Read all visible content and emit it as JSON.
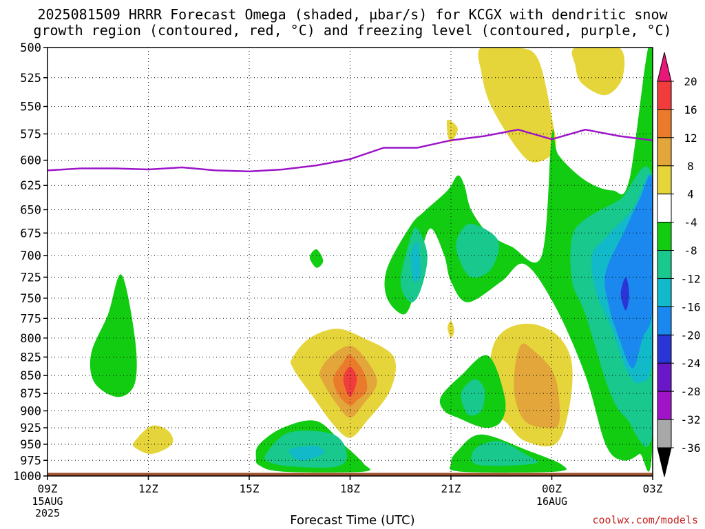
{
  "title_line1": "2025081509 HRRR Forecast Omega (shaded, µbar/s) for KCGX with dendritic snow",
  "title_line2": "growth region (contoured, red, °C) and freezing level (contoured, purple, °C)",
  "credit": "coolwx.com/models",
  "chart_data": {
    "type": "heatmap",
    "title": "2025081509 HRRR Forecast Omega (shaded, µbar/s) for KCGX with dendritic snow growth region (contoured, red, °C) and freezing level (contoured, purple, °C)",
    "xlabel": "Forecast Time (UTC)",
    "ylabel": "",
    "x_ticks": [
      {
        "hour": 0,
        "label": "09Z",
        "sub": [
          "15AUG",
          "2025"
        ]
      },
      {
        "hour": 3,
        "label": "12Z",
        "sub": []
      },
      {
        "hour": 6,
        "label": "15Z",
        "sub": []
      },
      {
        "hour": 9,
        "label": "18Z",
        "sub": []
      },
      {
        "hour": 12,
        "label": "21Z",
        "sub": []
      },
      {
        "hour": 15,
        "label": "00Z",
        "sub": [
          "16AUG"
        ]
      },
      {
        "hour": 18,
        "label": "03Z",
        "sub": []
      }
    ],
    "xlim": [
      0,
      18
    ],
    "y_ticks": [
      500,
      525,
      550,
      575,
      600,
      625,
      650,
      675,
      700,
      725,
      750,
      775,
      800,
      825,
      850,
      875,
      900,
      925,
      950,
      975,
      1000
    ],
    "ylim": [
      500,
      1000
    ],
    "y_scale": "log-pressure",
    "grid": true,
    "colorbar": {
      "labels": [
        "20",
        "16",
        "12",
        "8",
        "4",
        "-4",
        "-8",
        "-12",
        "-16",
        "-20",
        "-24",
        "-28",
        "-32",
        "-36"
      ],
      "bins": [
        {
          "range": ">20",
          "color": "#e8177a"
        },
        {
          "range": "16–20",
          "color": "#f03c3c"
        },
        {
          "range": "12–16",
          "color": "#ea7a2c"
        },
        {
          "range": "8–12",
          "color": "#e2a63a"
        },
        {
          "range": "4–8",
          "color": "#e6d53a"
        },
        {
          "range": "-4–4",
          "color": "#ffffff"
        },
        {
          "range": "-8–-4",
          "color": "#11cc11"
        },
        {
          "range": "-12–-8",
          "color": "#18c88c"
        },
        {
          "range": "-16–-12",
          "color": "#12b9c8"
        },
        {
          "range": "-20–-16",
          "color": "#1a88ee"
        },
        {
          "range": "-24–-20",
          "color": "#2b35d6"
        },
        {
          "range": "-28–-24",
          "color": "#6a17c8"
        },
        {
          "range": "-32–-28",
          "color": "#9f14c6"
        },
        {
          "range": "-36–-32",
          "color": "#a8a8a8"
        },
        {
          "range": "<-36",
          "color": "#000000"
        }
      ]
    },
    "freezing_level_hPa": [
      {
        "hour": 0,
        "p": 610
      },
      {
        "hour": 1,
        "p": 608
      },
      {
        "hour": 2,
        "p": 608
      },
      {
        "hour": 3,
        "p": 609
      },
      {
        "hour": 4,
        "p": 607
      },
      {
        "hour": 5,
        "p": 610
      },
      {
        "hour": 6,
        "p": 611
      },
      {
        "hour": 7,
        "p": 609
      },
      {
        "hour": 8,
        "p": 605
      },
      {
        "hour": 9,
        "p": 599
      },
      {
        "hour": 10,
        "p": 588
      },
      {
        "hour": 11,
        "p": 588
      },
      {
        "hour": 12,
        "p": 581
      },
      {
        "hour": 13,
        "p": 577
      },
      {
        "hour": 14,
        "p": 571
      },
      {
        "hour": 15,
        "p": 580
      },
      {
        "hour": 16,
        "p": 571
      },
      {
        "hour": 17,
        "p": 577
      },
      {
        "hour": 18,
        "p": 581
      }
    ],
    "freezing_level_color": "#9b14c8",
    "omega_regions": [
      {
        "level": "4–8",
        "color": "#e6d53a",
        "pts": [
          [
            12.9,
            500
          ],
          [
            14,
            500
          ],
          [
            14.6,
            510
          ],
          [
            15,
            560
          ],
          [
            15.1,
            590
          ],
          [
            14.5,
            602
          ],
          [
            14,
            590
          ],
          [
            13.2,
            550
          ],
          [
            12.9,
            520
          ]
        ]
      },
      {
        "level": "4–8",
        "color": "#e6d53a",
        "pts": [
          [
            15.7,
            500
          ],
          [
            17,
            500
          ],
          [
            17.1,
            525
          ],
          [
            16.6,
            540
          ],
          [
            15.9,
            530
          ],
          [
            15.7,
            515
          ]
        ]
      },
      {
        "level": "4–8",
        "color": "#e6d53a",
        "pts": [
          [
            11.9,
            562
          ],
          [
            12.2,
            570
          ],
          [
            12,
            583
          ],
          [
            11.9,
            575
          ]
        ]
      },
      {
        "level": "4–8",
        "color": "#e6d53a",
        "pts": [
          [
            9,
            835
          ],
          [
            9.5,
            835
          ],
          [
            9.8,
            875
          ],
          [
            9.1,
            905
          ]
        ]
      },
      {
        "level": "4–8",
        "color": "#e6d53a",
        "pts": [
          [
            7.3,
            825
          ],
          [
            7.8,
            800
          ],
          [
            8.6,
            788
          ],
          [
            9.4,
            800
          ],
          [
            10.3,
            825
          ],
          [
            10.2,
            870
          ],
          [
            9.5,
            915
          ],
          [
            9,
            940
          ],
          [
            8.5,
            920
          ],
          [
            7.9,
            880
          ],
          [
            7.3,
            840
          ]
        ]
      },
      {
        "level": "8–12",
        "color": "#e2a63a",
        "pts": [
          [
            8.1,
            845
          ],
          [
            8.4,
            825
          ],
          [
            9,
            810
          ],
          [
            9.5,
            830
          ],
          [
            9.8,
            860
          ],
          [
            9.4,
            890
          ],
          [
            9,
            910
          ],
          [
            8.6,
            890
          ],
          [
            8.2,
            860
          ]
        ]
      },
      {
        "level": "12–16",
        "color": "#ea7a2c",
        "pts": [
          [
            8.5,
            855
          ],
          [
            8.8,
            832
          ],
          [
            9,
            822
          ],
          [
            9.4,
            845
          ],
          [
            9.5,
            870
          ],
          [
            9.2,
            885
          ],
          [
            9,
            892
          ],
          [
            8.7,
            880
          ]
        ]
      },
      {
        "level": "16–20",
        "color": "#f03c3c",
        "pts": [
          [
            8.8,
            855
          ],
          [
            9,
            838
          ],
          [
            9.2,
            855
          ],
          [
            9,
            880
          ]
        ]
      },
      {
        "level": "4–8",
        "color": "#e6d53a",
        "pts": [
          [
            13.2,
            820
          ],
          [
            13.6,
            790
          ],
          [
            14.4,
            782
          ],
          [
            15.2,
            798
          ],
          [
            15.6,
            835
          ],
          [
            15.5,
            900
          ],
          [
            15.1,
            950
          ],
          [
            14.2,
            945
          ],
          [
            13.7,
            920
          ],
          [
            13.2,
            890
          ]
        ]
      },
      {
        "level": "8–12",
        "color": "#e2a63a",
        "pts": [
          [
            13.9,
            840
          ],
          [
            14.1,
            808
          ],
          [
            14.5,
            818
          ],
          [
            15,
            842
          ],
          [
            15.2,
            875
          ],
          [
            15.2,
            920
          ],
          [
            14.8,
            925
          ],
          [
            14.2,
            915
          ],
          [
            13.9,
            880
          ]
        ]
      },
      {
        "level": "4–8",
        "color": "#e6d53a",
        "pts": [
          [
            2.6,
            945
          ],
          [
            3.1,
            922
          ],
          [
            3.6,
            930
          ],
          [
            3.7,
            950
          ],
          [
            3.1,
            965
          ],
          [
            2.6,
            955
          ]
        ]
      },
      {
        "level": "4–8",
        "color": "#e6d53a",
        "pts": [
          [
            11.9,
            787
          ],
          [
            12,
            778
          ],
          [
            12.1,
            790
          ],
          [
            12,
            800
          ]
        ]
      },
      {
        "level": "-8–-4",
        "color": "#11cc11",
        "pts": [
          [
            1.3,
            820
          ],
          [
            1.8,
            770
          ],
          [
            2.2,
            722
          ],
          [
            2.6,
            800
          ],
          [
            2.6,
            860
          ],
          [
            2.1,
            880
          ],
          [
            1.4,
            860
          ]
        ]
      },
      {
        "level": "-8–-4",
        "color": "#11cc11",
        "pts": [
          [
            7.8,
            702
          ],
          [
            8,
            693
          ],
          [
            8.2,
            706
          ],
          [
            8,
            714
          ]
        ]
      },
      {
        "level": "-8–-4",
        "color": "#11cc11",
        "pts": [
          [
            6.3,
            950
          ],
          [
            7,
            925
          ],
          [
            8,
            915
          ],
          [
            8.8,
            950
          ],
          [
            9.4,
            980
          ],
          [
            9.4,
            993
          ],
          [
            7,
            993
          ],
          [
            6.3,
            983
          ],
          [
            6.2,
            970
          ]
        ]
      },
      {
        "level": "-12–-8",
        "color": "#18c88c",
        "pts": [
          [
            6.5,
            965
          ],
          [
            7.2,
            932
          ],
          [
            8.5,
            935
          ],
          [
            8.9,
            965
          ],
          [
            8.6,
            985
          ],
          [
            7.3,
            985
          ],
          [
            6.6,
            978
          ]
        ]
      },
      {
        "level": "-16–-12",
        "color": "#12b9c8",
        "pts": [
          [
            7.2,
            958
          ],
          [
            8,
            953
          ],
          [
            8.2,
            965
          ],
          [
            7.5,
            975
          ]
        ]
      },
      {
        "level": "-8–-4",
        "color": "#11cc11",
        "pts": [
          [
            11.7,
            880
          ],
          [
            12.3,
            850
          ],
          [
            13.1,
            823
          ],
          [
            13.6,
            880
          ],
          [
            13.5,
            915
          ],
          [
            13,
            925
          ],
          [
            12.2,
            910
          ],
          [
            11.8,
            900
          ]
        ]
      },
      {
        "level": "-12–-8",
        "color": "#18c88c",
        "pts": [
          [
            12.3,
            875
          ],
          [
            12.7,
            855
          ],
          [
            13,
            870
          ],
          [
            12.9,
            900
          ],
          [
            12.5,
            905
          ]
        ]
      },
      {
        "level": "-8–-4",
        "color": "#11cc11",
        "pts": [
          [
            12.2,
            960
          ],
          [
            12.9,
            935
          ],
          [
            14.3,
            960
          ],
          [
            15.3,
            982
          ],
          [
            15.1,
            993
          ],
          [
            12.3,
            993
          ],
          [
            12,
            980
          ]
        ]
      },
      {
        "level": "-12–-8",
        "color": "#18c88c",
        "pts": [
          [
            12.7,
            958
          ],
          [
            13.4,
            945
          ],
          [
            14.2,
            965
          ],
          [
            14.5,
            980
          ],
          [
            12.8,
            982
          ]
        ]
      },
      {
        "level": "-8–-4",
        "color": "#11cc11",
        "pts": [
          [
            10.1,
            715
          ],
          [
            10.8,
            667
          ],
          [
            11.2,
            652
          ],
          [
            11.9,
            630
          ],
          [
            12.2,
            615
          ],
          [
            12.4,
            625
          ],
          [
            12.6,
            650
          ],
          [
            13.1,
            675
          ],
          [
            13.8,
            690
          ],
          [
            14.7,
            700
          ],
          [
            15,
            575
          ],
          [
            15.2,
            595
          ],
          [
            16,
            620
          ],
          [
            16.8,
            630
          ],
          [
            17.3,
            620
          ],
          [
            18,
            500
          ],
          [
            18,
            940
          ],
          [
            17.6,
            965
          ],
          [
            17.1,
            975
          ],
          [
            16.6,
            950
          ],
          [
            16,
            850
          ],
          [
            15.1,
            760
          ],
          [
            14.2,
            710
          ],
          [
            13.5,
            730
          ],
          [
            12.5,
            755
          ],
          [
            12,
            730
          ],
          [
            11.8,
            700
          ],
          [
            11.4,
            670
          ],
          [
            11.1,
            700
          ],
          [
            10.9,
            745
          ],
          [
            10.6,
            770
          ],
          [
            10.1,
            750
          ]
        ]
      },
      {
        "level": "-12–-8",
        "color": "#18c88c",
        "pts": [
          [
            10.5,
            730
          ],
          [
            10.8,
            680
          ],
          [
            11,
            670
          ],
          [
            11.3,
            700
          ],
          [
            11.1,
            740
          ],
          [
            10.8,
            755
          ]
        ]
      },
      {
        "level": "-16–-12",
        "color": "#12b9c8",
        "pts": [
          [
            10.8,
            700
          ],
          [
            11,
            685
          ],
          [
            11.1,
            720
          ],
          [
            10.9,
            730
          ]
        ]
      },
      {
        "level": "-12–-8",
        "color": "#18c88c",
        "pts": [
          [
            12.2,
            680
          ],
          [
            12.6,
            665
          ],
          [
            13.4,
            683
          ],
          [
            13.2,
            715
          ],
          [
            12.6,
            725
          ],
          [
            12.2,
            700
          ]
        ]
      },
      {
        "level": "-12–-8",
        "color": "#18c88c",
        "pts": [
          [
            15.6,
            680
          ],
          [
            16,
            660
          ],
          [
            17,
            640
          ],
          [
            18,
            620
          ],
          [
            18,
            930
          ],
          [
            17.2,
            910
          ],
          [
            16.7,
            870
          ],
          [
            16,
            770
          ],
          [
            15.6,
            730
          ]
        ]
      },
      {
        "level": "-16–-12",
        "color": "#12b9c8",
        "pts": [
          [
            16.2,
            700
          ],
          [
            16.6,
            680
          ],
          [
            17.4,
            650
          ],
          [
            18,
            620
          ],
          [
            18,
            820
          ],
          [
            17.6,
            860
          ],
          [
            17.2,
            840
          ],
          [
            16.8,
            790
          ],
          [
            16.3,
            740
          ]
        ]
      },
      {
        "level": "-20–-16",
        "color": "#1a88ee",
        "pts": [
          [
            16.6,
            720
          ],
          [
            17.2,
            670
          ],
          [
            17.6,
            640
          ],
          [
            18,
            620
          ],
          [
            18,
            760
          ],
          [
            17.7,
            800
          ],
          [
            17.4,
            840
          ],
          [
            17,
            800
          ],
          [
            16.7,
            760
          ]
        ]
      },
      {
        "level": "-24–-20",
        "color": "#2b35d6",
        "pts": [
          [
            17.05,
            745
          ],
          [
            17.2,
            725
          ],
          [
            17.3,
            745
          ],
          [
            17.2,
            765
          ]
        ]
      }
    ],
    "ground_band": {
      "from_hPa": 995,
      "to_hPa": 1000,
      "color": "#a0522d"
    }
  }
}
